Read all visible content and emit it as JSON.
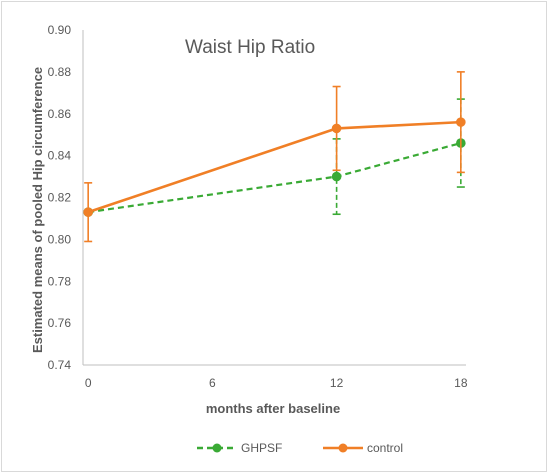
{
  "chart_data": {
    "type": "line",
    "title": "Waist Hip Ratio",
    "xlabel": "months after baseline",
    "ylabel": "Estimated means of pooled Hip circumference",
    "x": [
      0,
      12,
      18
    ],
    "xticks": [
      0,
      6,
      12,
      18
    ],
    "xlim": [
      -0.25,
      18.25
    ],
    "ylim": [
      0.74,
      0.9
    ],
    "yticks": [
      0.74,
      0.76,
      0.78,
      0.8,
      0.82,
      0.84,
      0.86,
      0.88,
      0.9
    ],
    "ytick_labels": [
      "0.74",
      "0.76",
      "0.78",
      "0.80",
      "0.82",
      "0.84",
      "0.86",
      "0.88",
      "0.90"
    ],
    "grid": false,
    "legend_position": "bottom",
    "series": [
      {
        "name": "GHPSF",
        "color": "#3aaa35",
        "line_style": "dashed",
        "values": [
          0.813,
          0.83,
          0.846
        ],
        "error_low": [
          0.813,
          0.812,
          0.825
        ],
        "error_high": [
          0.813,
          0.848,
          0.867
        ]
      },
      {
        "name": "control",
        "color": "#f07f26",
        "line_style": "solid",
        "values": [
          0.813,
          0.853,
          0.856
        ],
        "error_low": [
          0.799,
          0.833,
          0.832
        ],
        "error_high": [
          0.827,
          0.873,
          0.88
        ]
      }
    ]
  }
}
